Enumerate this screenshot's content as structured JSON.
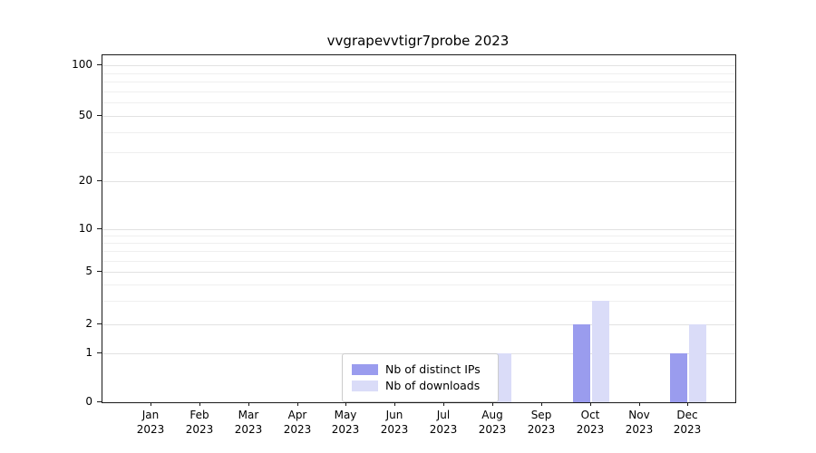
{
  "chart_data": {
    "type": "bar",
    "title": "vvgrapevvtigr7probe 2023",
    "categories": [
      "Jan 2023",
      "Feb 2023",
      "Mar 2023",
      "Apr 2023",
      "May 2023",
      "Jun 2023",
      "Jul 2023",
      "Aug 2023",
      "Sep 2023",
      "Oct 2023",
      "Nov 2023",
      "Dec 2023"
    ],
    "series": [
      {
        "name": "Nb of distinct IPs",
        "color": "#9a9cee",
        "values": [
          0,
          0,
          0,
          0,
          0,
          0,
          0,
          1,
          0,
          2,
          0,
          1
        ]
      },
      {
        "name": "Nb of downloads",
        "color": "#dadcf8",
        "values": [
          0,
          0,
          0,
          0,
          0,
          0,
          0,
          1,
          0,
          3,
          0,
          2
        ]
      }
    ],
    "yticks": [
      0,
      1,
      2,
      5,
      10,
      20,
      50,
      100
    ],
    "minor_gridline_values": [
      3,
      4,
      6,
      7,
      8,
      9,
      30,
      40,
      60,
      70,
      80,
      90
    ],
    "scale": "symlog",
    "ylim": [
      0,
      100
    ],
    "grid": "horizontal",
    "legend_position": "lower center"
  }
}
